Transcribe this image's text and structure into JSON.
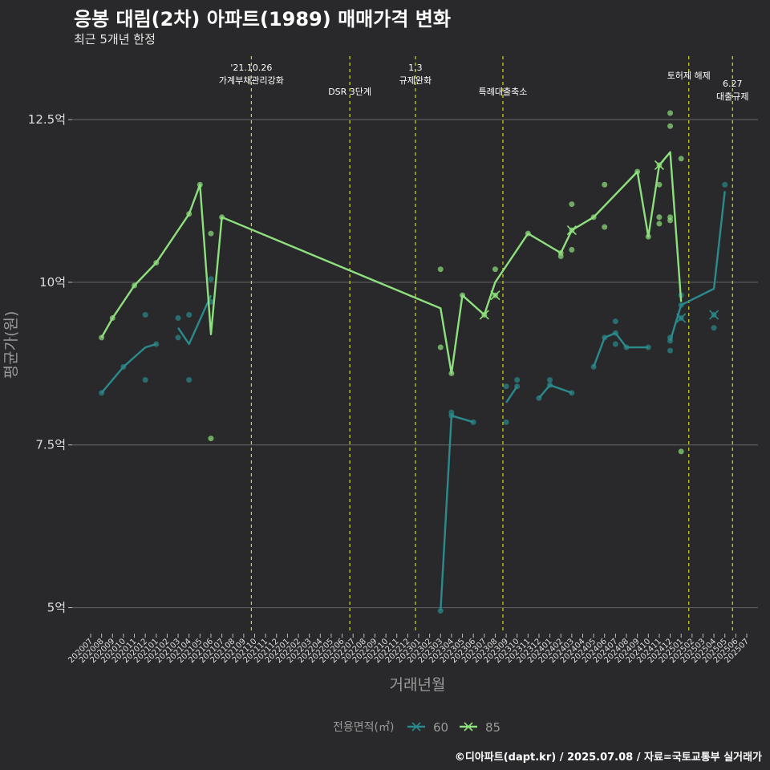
{
  "title": "응봉 대림(2차) 아파트(1989) 매매가격 변화",
  "subtitle": "최근 5개년 한정",
  "caption": "©디아파트(dapt.kr) / 2025.07.08 / 자료=국토교통부 실거래가",
  "colors": {
    "background": "#29292b",
    "grid": "#5c5c5c",
    "series_60": "#2a8a8c",
    "series_85": "#8ee07e",
    "event_line": "#d6d61e",
    "text": "#e8e8e8",
    "muted": "#9a9a9a"
  },
  "chart_data": {
    "type": "line",
    "xlabel": "거래년월",
    "ylabel": "평균가(원)",
    "ylim": [
      4.6,
      13.5
    ],
    "yticks": [
      5,
      7.5,
      10,
      12.5
    ],
    "ytick_labels": [
      "5억",
      "7.5억",
      "10억",
      "12.5억"
    ],
    "x_start": "2020.07",
    "x_end": "2025.07",
    "x_ticks": [
      "202007",
      "202008",
      "202009",
      "202010",
      "202011",
      "202012",
      "202101",
      "202102",
      "202103",
      "202104",
      "202105",
      "202106",
      "202107",
      "202108",
      "202109",
      "202110",
      "202111",
      "202112",
      "202201",
      "202202",
      "202203",
      "202204",
      "202205",
      "202206",
      "202207",
      "202208",
      "202209",
      "202210",
      "202211",
      "202212",
      "202301",
      "202302",
      "202303",
      "202304",
      "202305",
      "202306",
      "202307",
      "202308",
      "202309",
      "202310",
      "202311",
      "202312",
      "202401",
      "202402",
      "202403",
      "202404",
      "202405",
      "202406",
      "202407",
      "202408",
      "202409",
      "202410",
      "202411",
      "202412",
      "202501",
      "202502",
      "202503",
      "202504",
      "202505",
      "202506",
      "202507"
    ],
    "legend": {
      "title": "전용면적(㎡)",
      "entries": [
        "60",
        "85"
      ],
      "position": "bottom"
    },
    "events": [
      {
        "x": 14.7,
        "label": "'21.10.26\n가계부채관리강화",
        "level": 0
      },
      {
        "x": 23.7,
        "label": "DSR 3단계",
        "level": 2
      },
      {
        "x": 29.7,
        "label": "1.3\n규제완화",
        "level": 0
      },
      {
        "x": 37.7,
        "label": "특례대출축소",
        "level": 2
      },
      {
        "x": 54.7,
        "label": "토허제 해제",
        "level": 1
      },
      {
        "x": 58.7,
        "label": "6.27\n대출규제",
        "level": 3
      }
    ],
    "series": [
      {
        "name": "60",
        "lines": [
          [
            [
              1,
              8.3
            ],
            [
              3,
              8.7
            ],
            [
              5,
              9.0
            ],
            [
              6,
              9.05
            ]
          ],
          [
            [
              8,
              9.3
            ],
            [
              9,
              9.05
            ],
            [
              11,
              9.8
            ]
          ],
          [
            [
              32,
              4.95
            ],
            [
              33,
              7.95
            ],
            [
              35,
              7.85
            ]
          ],
          [
            [
              38,
              8.15
            ],
            [
              39,
              8.4
            ]
          ],
          [
            [
              41,
              8.22
            ],
            [
              42,
              8.42
            ],
            [
              44,
              8.3
            ]
          ],
          [
            [
              46,
              8.7
            ],
            [
              47,
              9.15
            ],
            [
              48,
              9.22
            ],
            [
              49,
              9.0
            ],
            [
              51,
              9.0
            ]
          ],
          [
            [
              53,
              9.1
            ],
            [
              54,
              9.65
            ],
            [
              57,
              9.9
            ],
            [
              58,
              11.4
            ]
          ]
        ],
        "points": [
          [
            1,
            8.3
          ],
          [
            3,
            8.7
          ],
          [
            5,
            9.5
          ],
          [
            5,
            8.5
          ],
          [
            6,
            9.05
          ],
          [
            8,
            9.45
          ],
          [
            8,
            9.15
          ],
          [
            9,
            9.5
          ],
          [
            9,
            8.5
          ],
          [
            11,
            9.7
          ],
          [
            11,
            10.05
          ],
          [
            32,
            4.95
          ],
          [
            33,
            8.0
          ],
          [
            33,
            7.95
          ],
          [
            35,
            7.85
          ],
          [
            38,
            7.85
          ],
          [
            38,
            8.4
          ],
          [
            39,
            8.4
          ],
          [
            39,
            8.5
          ],
          [
            41,
            8.22
          ],
          [
            42,
            8.42
          ],
          [
            42,
            8.5
          ],
          [
            44,
            8.3
          ],
          [
            46,
            8.7
          ],
          [
            47,
            9.15
          ],
          [
            48,
            9.22
          ],
          [
            48,
            9.05
          ],
          [
            48,
            9.4
          ],
          [
            49,
            9.0
          ],
          [
            51,
            9.0
          ],
          [
            53,
            9.1
          ],
          [
            53,
            9.15
          ],
          [
            53,
            8.95
          ],
          [
            54,
            9.45
          ],
          [
            54,
            9.65
          ],
          [
            54,
            9.8
          ],
          [
            57,
            9.5
          ],
          [
            57,
            9.3
          ],
          [
            58,
            11.5
          ]
        ],
        "markers_x": [
          [
            54,
            9.45
          ],
          [
            57,
            9.5
          ]
        ]
      },
      {
        "name": "85",
        "lines": [
          [
            [
              1,
              9.15
            ],
            [
              2,
              9.45
            ],
            [
              4,
              9.95
            ],
            [
              6,
              10.3
            ],
            [
              9,
              11.05
            ],
            [
              10,
              11.5
            ],
            [
              11,
              9.2
            ],
            [
              12,
              11.0
            ],
            [
              32,
              9.6
            ],
            [
              33,
              8.6
            ],
            [
              34,
              9.8
            ],
            [
              36,
              9.5
            ],
            [
              37,
              10.0
            ],
            [
              40,
              10.75
            ],
            [
              43,
              10.45
            ],
            [
              44,
              10.8
            ],
            [
              46,
              11.0
            ],
            [
              50,
              11.7
            ],
            [
              51,
              10.7
            ],
            [
              52,
              11.8
            ],
            [
              53,
              12.0
            ],
            [
              54,
              9.7
            ]
          ]
        ],
        "points": [
          [
            1,
            9.15
          ],
          [
            2,
            9.45
          ],
          [
            4,
            9.95
          ],
          [
            6,
            10.3
          ],
          [
            9,
            11.05
          ],
          [
            10,
            11.5
          ],
          [
            11,
            10.75
          ],
          [
            11,
            7.6
          ],
          [
            12,
            11.0
          ],
          [
            32,
            10.2
          ],
          [
            32,
            9.0
          ],
          [
            33,
            8.6
          ],
          [
            34,
            9.8
          ],
          [
            36,
            9.5
          ],
          [
            37,
            9.8
          ],
          [
            37,
            10.2
          ],
          [
            40,
            10.75
          ],
          [
            43,
            10.45
          ],
          [
            43,
            10.4
          ],
          [
            44,
            10.8
          ],
          [
            44,
            11.2
          ],
          [
            44,
            10.5
          ],
          [
            46,
            11.0
          ],
          [
            47,
            11.5
          ],
          [
            47,
            10.85
          ],
          [
            50,
            11.7
          ],
          [
            51,
            10.7
          ],
          [
            52,
            11.8
          ],
          [
            52,
            11.5
          ],
          [
            52,
            11.0
          ],
          [
            52,
            10.9
          ],
          [
            53,
            12.6
          ],
          [
            53,
            12.4
          ],
          [
            53,
            11.0
          ],
          [
            53,
            10.95
          ],
          [
            54,
            11.9
          ],
          [
            54,
            7.4
          ]
        ],
        "markers_x": [
          [
            36,
            9.5
          ],
          [
            37,
            9.8
          ],
          [
            44,
            10.8
          ],
          [
            52,
            11.8
          ]
        ]
      }
    ]
  }
}
